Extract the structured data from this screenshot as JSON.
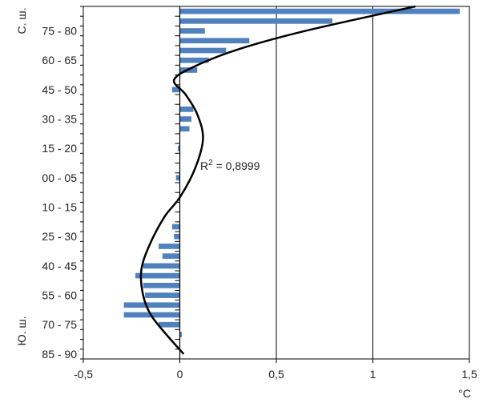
{
  "chart_data": {
    "type": "bar",
    "orientation": "horizontal",
    "xlim": [
      -0.5,
      1.5
    ],
    "xticks": [
      "-0,5",
      "0",
      "0,5",
      "1",
      "1,5"
    ],
    "x_tick_values": [
      -0.5,
      0,
      0.5,
      1,
      1.5
    ],
    "x_unit": "°C",
    "y_tick_labels": [
      "75 - 80",
      "60 - 65",
      "45 - 50",
      "30 - 35",
      "15 - 20",
      "00 - 05",
      "10 - 15",
      "25 - 30",
      "40 - 45",
      "55 - 60",
      "70 - 75",
      "85 - 90"
    ],
    "hemisphere_labels": {
      "north": "С. ш.",
      "south": "Ю. ш."
    },
    "bar_color": "#4f81bd",
    "bars": [
      {
        "row": 0,
        "value": 1.45
      },
      {
        "row": 1,
        "value": 0.79
      },
      {
        "row": 2,
        "value": 0.13
      },
      {
        "row": 3,
        "value": 0.36
      },
      {
        "row": 4,
        "value": 0.24
      },
      {
        "row": 5,
        "value": 0.15
      },
      {
        "row": 6,
        "value": 0.09
      },
      {
        "row": 8,
        "value": -0.04
      },
      {
        "row": 10,
        "value": 0.07
      },
      {
        "row": 11,
        "value": 0.06
      },
      {
        "row": 12,
        "value": 0.05
      },
      {
        "row": 14,
        "value": -0.01
      },
      {
        "row": 17,
        "value": -0.02
      },
      {
        "row": 22,
        "value": -0.04
      },
      {
        "row": 23,
        "value": -0.03
      },
      {
        "row": 24,
        "value": -0.11
      },
      {
        "row": 25,
        "value": -0.09
      },
      {
        "row": 26,
        "value": -0.19
      },
      {
        "row": 27,
        "value": -0.23
      },
      {
        "row": 28,
        "value": -0.19
      },
      {
        "row": 29,
        "value": -0.18
      },
      {
        "row": 30,
        "value": -0.29
      },
      {
        "row": 31,
        "value": -0.29
      },
      {
        "row": 32,
        "value": -0.11
      },
      {
        "row": 33,
        "value": 0.01
      }
    ],
    "trend": {
      "label": "R² = 0,8999",
      "label_main": "R",
      "label_sup": "2",
      "label_rest": " = 0,8999",
      "points": [
        [
          1.22,
          0
        ],
        [
          0.65,
          2.5
        ],
        [
          0.3,
          4.4
        ],
        [
          0.08,
          6.1
        ],
        [
          -0.03,
          7.5
        ],
        [
          0.03,
          9.0
        ],
        [
          0.09,
          11.0
        ],
        [
          0.12,
          13.5
        ],
        [
          0.08,
          16.5
        ],
        [
          0.0,
          19.5
        ],
        [
          -0.08,
          21.5
        ],
        [
          -0.16,
          24.5
        ],
        [
          -0.2,
          27.0
        ],
        [
          -0.19,
          29.5
        ],
        [
          -0.15,
          31.5
        ],
        [
          -0.07,
          33.5
        ],
        [
          0.02,
          35.5
        ]
      ]
    },
    "grid": "vertical",
    "legend": "none"
  }
}
